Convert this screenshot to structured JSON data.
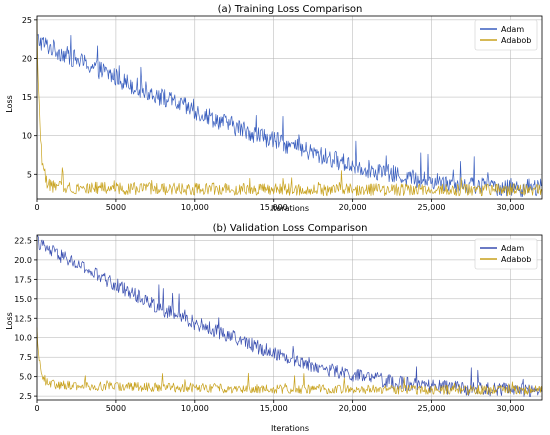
{
  "chart_data": [
    {
      "type": "line",
      "title": "(a) Training Loss Comparison",
      "xlabel": "Iterations",
      "ylabel": "Loss",
      "xlim": [
        0,
        32000
      ],
      "ylim": [
        1.8,
        25.5
      ],
      "xticks": [
        0,
        5000,
        10000,
        15000,
        20000,
        25000,
        30000
      ],
      "xtick_labels": [
        "0",
        "5000",
        "10,000",
        "15,000",
        "20,000",
        "25,000",
        "30,000"
      ],
      "yticks": [
        5,
        10,
        15,
        20,
        25
      ],
      "ytick_labels": [
        "5",
        "10",
        "15",
        "20",
        "25"
      ],
      "grid": true,
      "legend_position": "top-right",
      "series": [
        {
          "name": "Adam",
          "color": "#3a5fbf",
          "x": [
            0,
            500,
            2000,
            4000,
            6000,
            8000,
            10000,
            12000,
            14000,
            16000,
            18000,
            20000,
            22000,
            24000,
            26000,
            28000,
            30000,
            32000
          ],
          "values": [
            22.5,
            21.8,
            20.3,
            18.5,
            16.6,
            14.9,
            13.2,
            11.6,
            10.1,
            8.7,
            7.4,
            6.2,
            5.2,
            4.4,
            3.9,
            3.5,
            3.3,
            3.2
          ],
          "noise": 1.2
        },
        {
          "name": "Adabob",
          "color": "#c8a21e",
          "x": [
            0,
            100,
            300,
            600,
            1000,
            2000,
            4000,
            8000,
            12000,
            16000,
            20000,
            24000,
            28000,
            32000
          ],
          "values": [
            22.0,
            16.0,
            7.0,
            4.0,
            3.4,
            3.3,
            3.2,
            3.1,
            3.1,
            3.0,
            3.0,
            3.0,
            3.0,
            3.0
          ],
          "noise": 0.8
        }
      ]
    },
    {
      "type": "line",
      "title": "(b) Validation Loss Comparison",
      "xlabel": "Iterations",
      "ylabel": "Loss",
      "xlim": [
        0,
        32000
      ],
      "ylim": [
        2.0,
        23.2
      ],
      "xticks": [
        0,
        5000,
        10000,
        15000,
        20000,
        25000,
        30000
      ],
      "xtick_labels": [
        "0",
        "5000",
        "10,000",
        "15,000",
        "20,000",
        "25,000",
        "30,000"
      ],
      "yticks": [
        2.5,
        5.0,
        7.5,
        10.0,
        12.5,
        15.0,
        17.5,
        20.0,
        22.5
      ],
      "ytick_labels": [
        "2.5",
        "5.0",
        "7.5",
        "10.0",
        "12.5",
        "15.0",
        "17.5",
        "20.0",
        "22.5"
      ],
      "grid": true,
      "legend_position": "top-right",
      "series": [
        {
          "name": "Adam",
          "color": "#3a4fb0",
          "x": [
            0,
            500,
            2000,
            4000,
            6000,
            8000,
            10000,
            12000,
            14000,
            16000,
            18000,
            20000,
            22000,
            24000,
            26000,
            28000,
            30000,
            32000
          ],
          "values": [
            22.5,
            21.5,
            20.0,
            17.8,
            15.8,
            13.6,
            11.9,
            10.4,
            8.8,
            7.4,
            6.1,
            5.2,
            4.5,
            3.9,
            3.6,
            3.4,
            3.3,
            3.3
          ],
          "noise": 0.9
        },
        {
          "name": "Adabob",
          "color": "#c8a21e",
          "x": [
            0,
            100,
            300,
            600,
            1000,
            2000,
            4000,
            8000,
            12000,
            16000,
            20000,
            24000,
            28000,
            32000
          ],
          "values": [
            11.0,
            7.5,
            5.5,
            4.3,
            4.0,
            3.9,
            3.8,
            3.6,
            3.5,
            3.4,
            3.4,
            3.3,
            3.3,
            3.3
          ],
          "noise": 0.6
        }
      ]
    }
  ]
}
